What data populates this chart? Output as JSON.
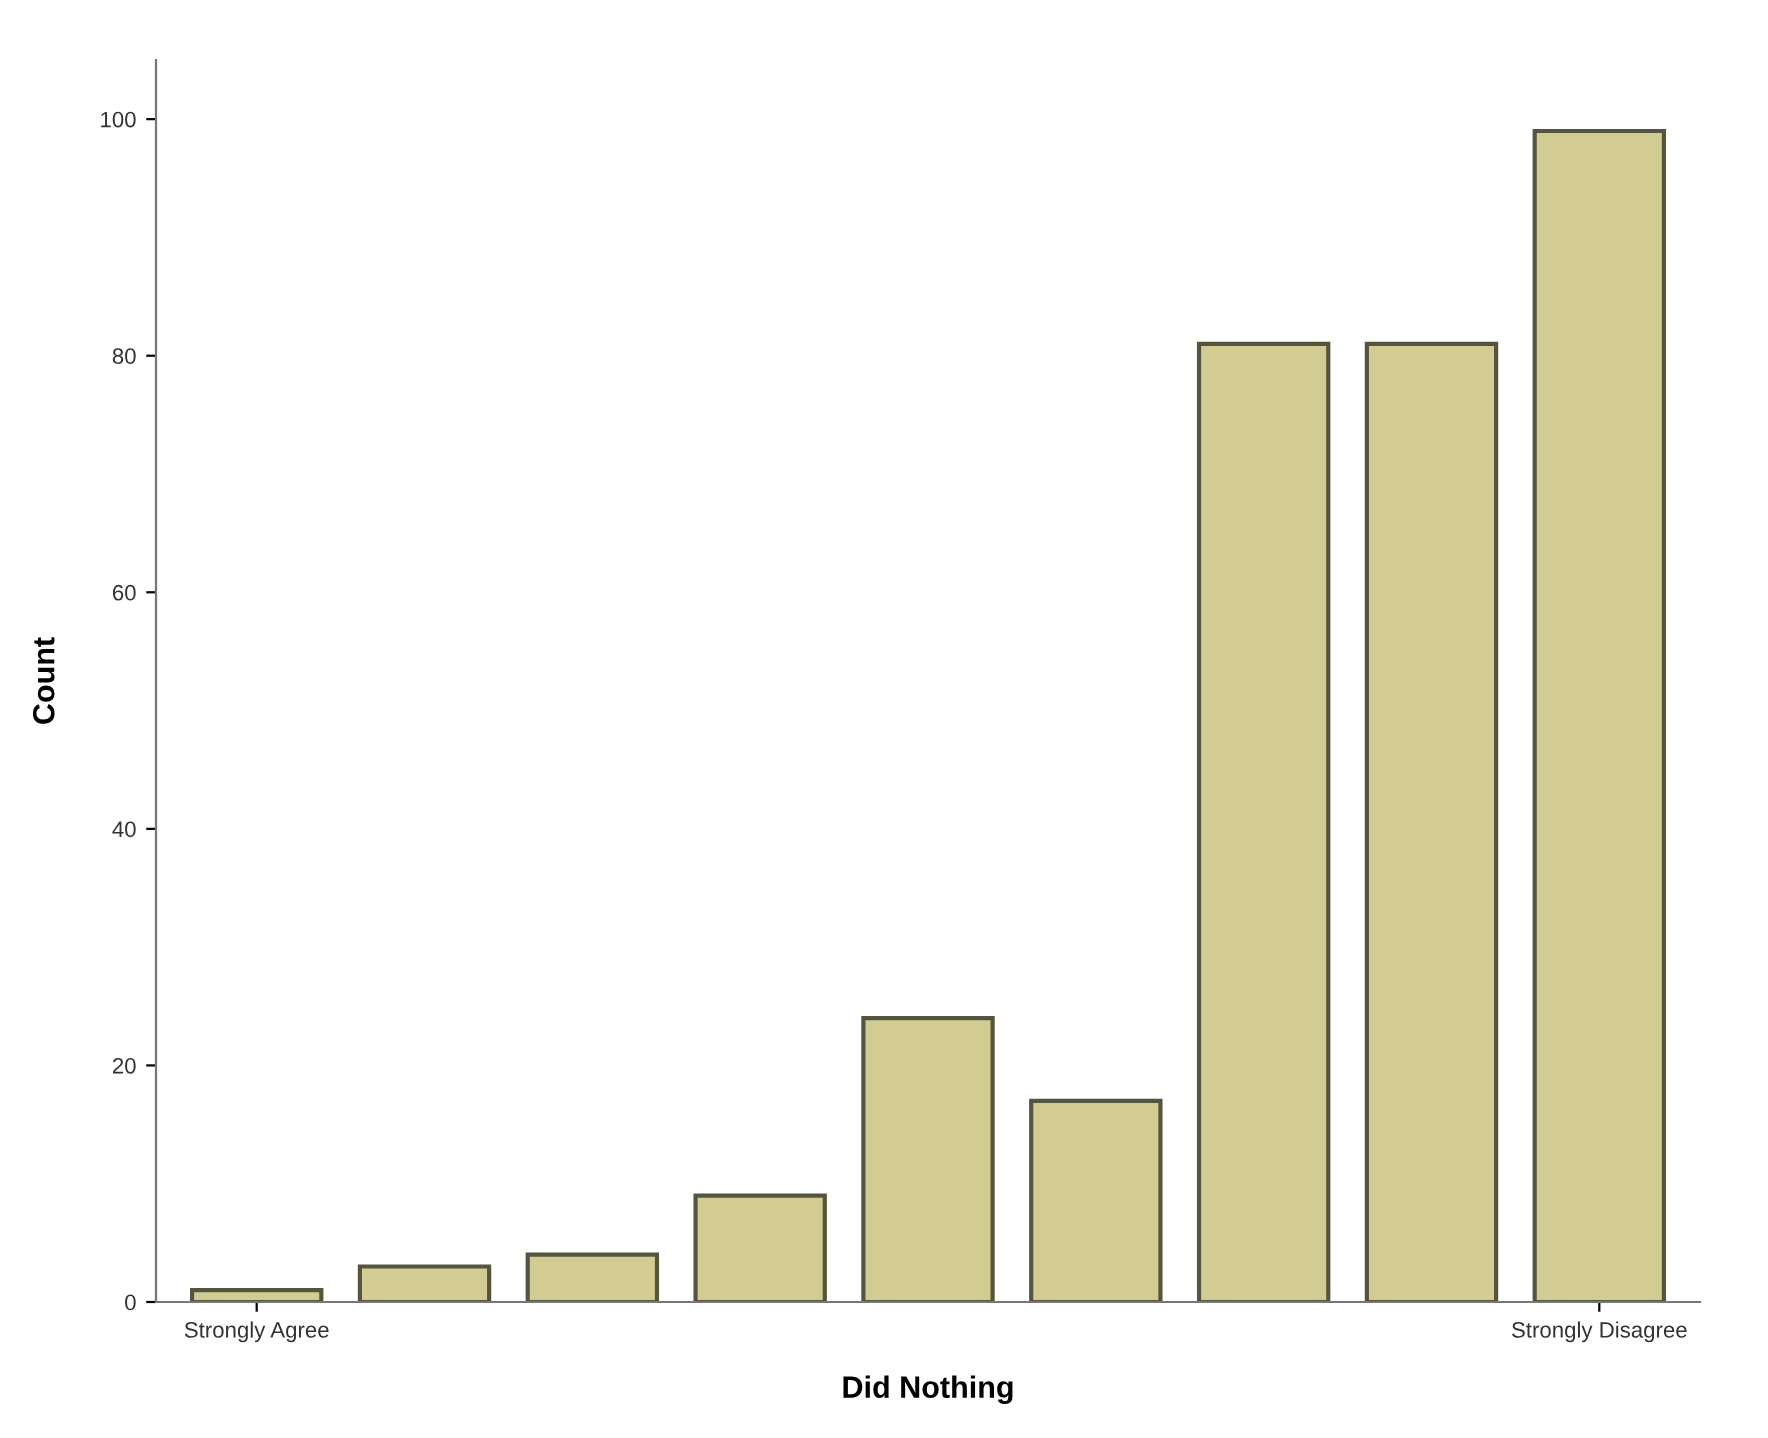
{
  "chart_data": {
    "type": "bar",
    "xlabel": "Did Nothing",
    "ylabel": "Count",
    "categories": [
      "Strongly Agree",
      null,
      null,
      null,
      null,
      null,
      null,
      null,
      "Strongly Disagree"
    ],
    "values": [
      1,
      3,
      4,
      9,
      24,
      17,
      81,
      81,
      99
    ],
    "color": "#d3cc92",
    "ylim": [
      0,
      105
    ],
    "yticks": [
      0,
      20,
      40,
      60,
      80,
      100
    ],
    "grid": false
  }
}
